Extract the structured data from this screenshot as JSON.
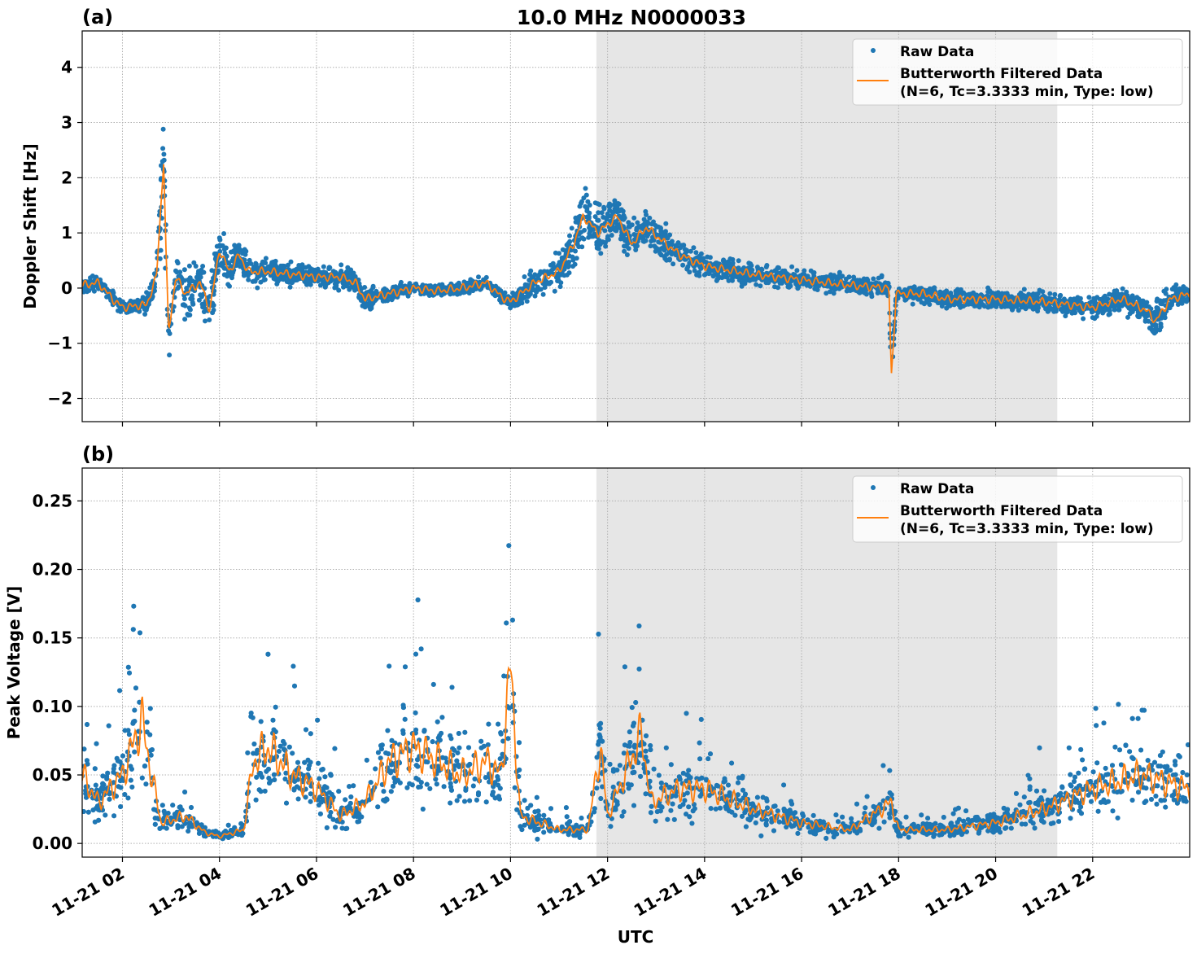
{
  "chart_data": [
    {
      "type": "scatter",
      "panel_label": "(a)",
      "title": "10.0 MHz N0000033",
      "xlabel": "",
      "ylabel": "Doppler Shift [Hz]",
      "xlim_hours_utc": [
        1.17,
        24.0
      ],
      "ylim": [
        -2.42,
        4.66
      ],
      "yticks": [
        -2,
        -1,
        0,
        1,
        2,
        3,
        4
      ],
      "ytick_labels": [
        "−2",
        "−1",
        "0",
        "1",
        "2",
        "3",
        "4"
      ],
      "grid": true,
      "shaded_interval_hours_utc": [
        11.77,
        21.27
      ],
      "shade_color": "#e6e6e6",
      "legend_position": "top-right",
      "series": [
        {
          "name": "Raw Data",
          "kind": "points",
          "color": "#1f77b4"
        },
        {
          "name": "Butterworth Filtered Data\n(N=6, Tc=3.3333 min, Type: low)",
          "kind": "line",
          "color": "#ff7f0e"
        }
      ],
      "legend": [
        "Raw Data",
        "Butterworth Filtered Data",
        "(N=6, Tc=3.3333 min, Type: low)"
      ],
      "filtered_hours_utc": [
        1.17,
        1.5,
        1.8,
        2.0,
        2.5,
        2.7,
        2.85,
        2.9,
        2.95,
        3.1,
        3.3,
        3.6,
        3.8,
        4.0,
        4.2,
        4.4,
        4.6,
        5.0,
        5.5,
        6.0,
        6.5,
        6.8,
        7.0,
        7.5,
        8.0,
        8.5,
        9.0,
        9.5,
        9.8,
        10.0,
        10.5,
        11.0,
        11.3,
        11.5,
        11.8,
        12.2,
        12.5,
        12.8,
        13.2,
        13.5,
        14.0,
        15.0,
        16.0,
        17.0,
        17.8,
        17.85,
        17.95,
        18.5,
        19.0,
        20.0,
        21.0,
        22.0,
        22.6,
        23.1,
        23.3,
        23.6,
        24.0
      ],
      "filtered_values": [
        0.05,
        0.1,
        -0.2,
        -0.35,
        -0.3,
        0.2,
        2.3,
        0.6,
        -0.8,
        0.2,
        -0.1,
        0.1,
        -0.4,
        0.7,
        0.3,
        0.6,
        0.3,
        0.3,
        0.25,
        0.2,
        0.2,
        0.1,
        -0.2,
        -0.1,
        0.0,
        -0.05,
        0.0,
        0.1,
        -0.15,
        -0.25,
        0.1,
        0.3,
        0.8,
        1.3,
        1.0,
        1.3,
        0.8,
        1.1,
        0.8,
        0.6,
        0.4,
        0.25,
        0.15,
        0.05,
        0.0,
        -1.6,
        -0.1,
        -0.1,
        -0.2,
        -0.2,
        -0.25,
        -0.35,
        -0.2,
        -0.4,
        -0.6,
        -0.2,
        -0.1
      ],
      "raw_spread": [
        0.2,
        0.2,
        0.2,
        0.2,
        0.25,
        0.4,
        1.8,
        0.8,
        1.0,
        0.7,
        0.7,
        0.7,
        0.8,
        0.8,
        0.6,
        0.6,
        0.4,
        0.3,
        0.3,
        0.3,
        0.3,
        0.3,
        0.3,
        0.2,
        0.15,
        0.15,
        0.15,
        0.15,
        0.2,
        0.25,
        0.4,
        0.5,
        0.8,
        0.9,
        0.7,
        0.6,
        0.5,
        0.5,
        0.5,
        0.4,
        0.35,
        0.3,
        0.25,
        0.25,
        0.25,
        0.3,
        0.25,
        0.25,
        0.25,
        0.25,
        0.3,
        0.3,
        0.35,
        0.4,
        0.6,
        0.35,
        0.3
      ]
    },
    {
      "type": "scatter",
      "panel_label": "(b)",
      "title": "",
      "xlabel": "UTC",
      "ylabel": "Peak Voltage [V]",
      "xlim_hours_utc": [
        1.17,
        24.0
      ],
      "ylim": [
        -0.01,
        0.274
      ],
      "yticks": [
        0.0,
        0.05,
        0.1,
        0.15,
        0.2,
        0.25
      ],
      "ytick_labels": [
        "0.00",
        "0.05",
        "0.10",
        "0.15",
        "0.20",
        "0.25"
      ],
      "xticks_hours_utc": [
        2,
        4,
        6,
        8,
        10,
        12,
        14,
        16,
        18,
        20,
        22
      ],
      "xtick_labels": [
        "11-21 02",
        "11-21 04",
        "11-21 06",
        "11-21 08",
        "11-21 10",
        "11-21 12",
        "11-21 14",
        "11-21 16",
        "11-21 18",
        "11-21 20",
        "11-21 22"
      ],
      "grid": true,
      "shaded_interval_hours_utc": [
        11.77,
        21.27
      ],
      "shade_color": "#e6e6e6",
      "legend_position": "top-right",
      "series": [
        {
          "name": "Raw Data",
          "kind": "points",
          "color": "#1f77b4"
        },
        {
          "name": "Butterworth Filtered Data\n(N=6, Tc=3.3333 min, Type: low)",
          "kind": "line",
          "color": "#ff7f0e"
        }
      ],
      "legend": [
        "Raw Data",
        "Butterworth Filtered Data",
        "(N=6, Tc=3.3333 min, Type: low)"
      ],
      "filtered_hours_utc": [
        1.17,
        1.5,
        2.0,
        2.4,
        2.6,
        2.8,
        3.3,
        3.7,
        4.0,
        4.5,
        4.7,
        5.0,
        5.5,
        6.0,
        6.5,
        7.0,
        7.5,
        8.0,
        8.5,
        9.0,
        9.5,
        9.8,
        10.0,
        10.2,
        11.0,
        11.6,
        11.85,
        12.0,
        12.7,
        12.9,
        13.5,
        14.0,
        15.0,
        16.0,
        17.0,
        17.85,
        18.0,
        19.0,
        20.0,
        21.0,
        22.0,
        23.0,
        24.0
      ],
      "filtered_values": [
        0.05,
        0.03,
        0.05,
        0.09,
        0.05,
        0.015,
        0.02,
        0.008,
        0.005,
        0.01,
        0.06,
        0.07,
        0.05,
        0.04,
        0.02,
        0.03,
        0.06,
        0.07,
        0.06,
        0.05,
        0.06,
        0.05,
        0.13,
        0.02,
        0.01,
        0.01,
        0.07,
        0.02,
        0.08,
        0.03,
        0.04,
        0.04,
        0.025,
        0.015,
        0.01,
        0.03,
        0.01,
        0.01,
        0.015,
        0.025,
        0.04,
        0.05,
        0.04
      ]
    }
  ]
}
